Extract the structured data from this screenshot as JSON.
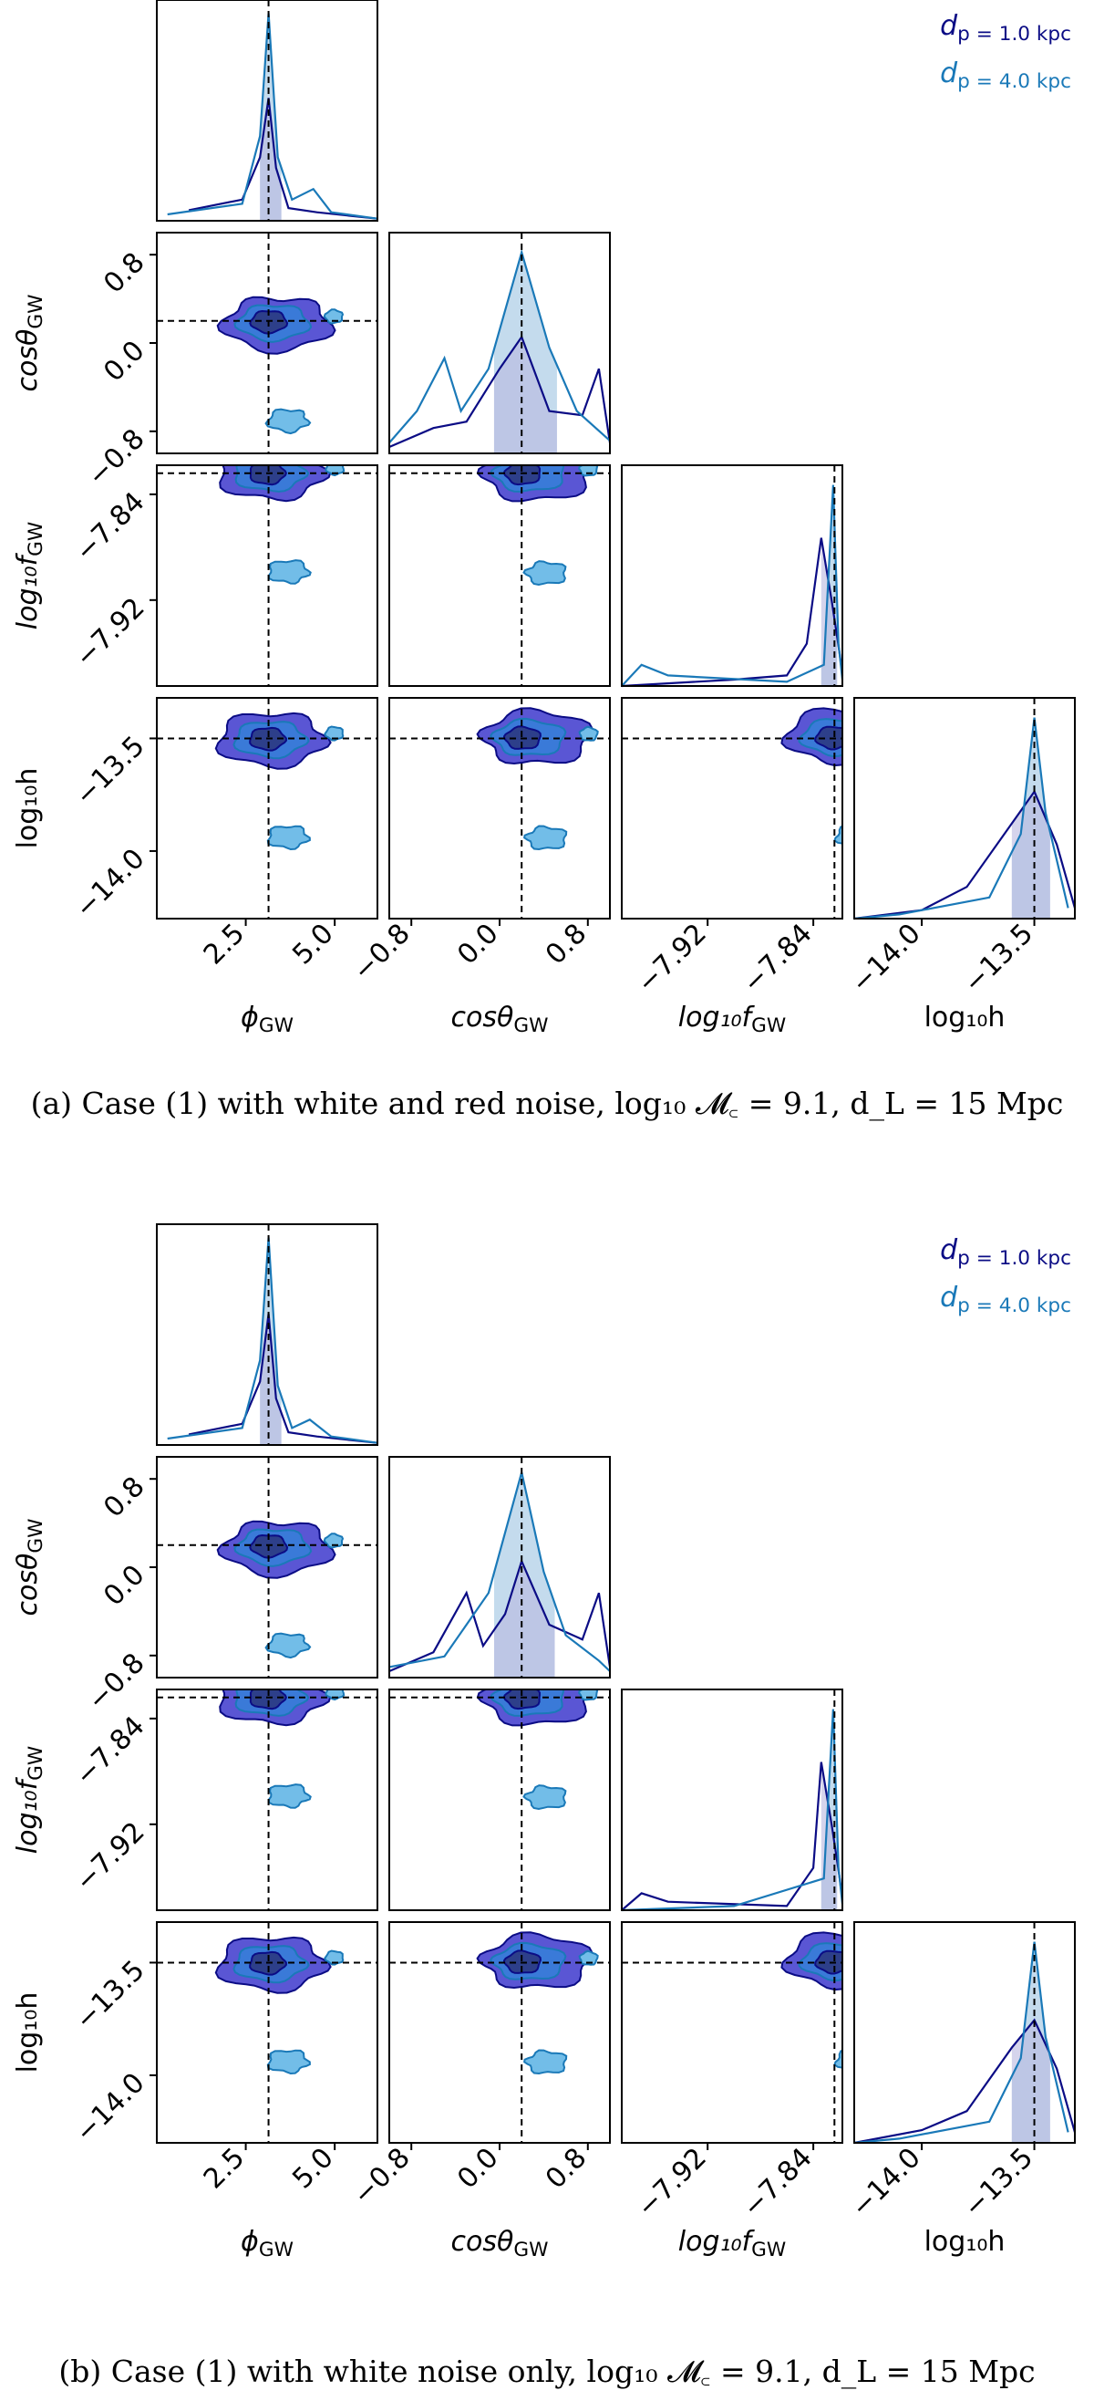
{
  "colors": {
    "near": "#0b0c85",
    "far": "#1a79b8",
    "fill_dark": "#5a56d4",
    "fill_mid": "#3a7ad8",
    "fill_light": "#72bde8",
    "band_near": "#b9b8e0",
    "band_far": "#c4dbed",
    "truth": "#000000"
  },
  "chart_data": [
    {
      "type": "corner",
      "id": "a",
      "caption": "(a)  Case (1) with white and red noise, log₁₀ 𝓜꜀ = 9.1, d_L = 15 Mpc",
      "legend": [
        {
          "label": "d_p = 1.0 kpc",
          "series": "near"
        },
        {
          "label": "d_p = 4.0 kpc",
          "series": "far"
        }
      ],
      "params": [
        {
          "name": "phi",
          "label": "ϕ_GW",
          "range": [
            0,
            6.2
          ],
          "truth": 3.14,
          "ticks": [
            2.5,
            5.0
          ],
          "tick_labels": [
            "2.5",
            "5.0"
          ]
        },
        {
          "name": "cos",
          "label": "cosθ_GW",
          "range": [
            -1.0,
            1.0
          ],
          "truth": 0.2,
          "ticks": [
            -0.8,
            0.0,
            0.8
          ],
          "tick_labels": [
            "−0.8",
            "0.0",
            "0.8"
          ]
        },
        {
          "name": "f",
          "label": "log₁₀f_GW",
          "range": [
            -7.985,
            -7.818
          ],
          "truth": -7.824,
          "ticks": [
            -7.92,
            -7.84
          ],
          "tick_labels": [
            "−7.92",
            "−7.84"
          ]
        },
        {
          "name": "h",
          "label": "log₁₀h",
          "range": [
            -14.3,
            -13.32
          ],
          "truth": -13.5,
          "ticks": [
            -14.0,
            -13.5
          ],
          "tick_labels": [
            "−14.0",
            "−13.5"
          ]
        }
      ],
      "marginals": [
        {
          "param": "phi",
          "band": [
            2.9,
            3.5
          ],
          "near": [
            [
              0.9,
              0.05
            ],
            [
              2.4,
              0.1
            ],
            [
              2.9,
              0.3
            ],
            [
              3.14,
              0.58
            ],
            [
              3.35,
              0.25
            ],
            [
              3.7,
              0.06
            ],
            [
              4.5,
              0.04
            ],
            [
              6.2,
              0.01
            ]
          ],
          "far": [
            [
              0.3,
              0.03
            ],
            [
              2.4,
              0.08
            ],
            [
              2.9,
              0.4
            ],
            [
              3.14,
              0.98
            ],
            [
              3.4,
              0.3
            ],
            [
              3.8,
              0.1
            ],
            [
              4.4,
              0.15
            ],
            [
              4.9,
              0.04
            ],
            [
              6.2,
              0.01
            ]
          ]
        },
        {
          "param": "cos",
          "band": [
            -0.05,
            0.52
          ],
          "near": [
            [
              -1.0,
              0.03
            ],
            [
              -0.6,
              0.12
            ],
            [
              -0.3,
              0.15
            ],
            [
              0.0,
              0.4
            ],
            [
              0.2,
              0.55
            ],
            [
              0.45,
              0.2
            ],
            [
              0.75,
              0.18
            ],
            [
              0.9,
              0.4
            ],
            [
              1.0,
              0.05
            ]
          ],
          "far": [
            [
              -1.0,
              0.05
            ],
            [
              -0.75,
              0.2
            ],
            [
              -0.5,
              0.45
            ],
            [
              -0.35,
              0.2
            ],
            [
              -0.1,
              0.4
            ],
            [
              0.2,
              0.95
            ],
            [
              0.45,
              0.5
            ],
            [
              0.7,
              0.2
            ],
            [
              1.0,
              0.06
            ]
          ]
        },
        {
          "param": "f",
          "band": [
            -7.834,
            -7.822
          ],
          "near": [
            [
              -7.985,
              0.0
            ],
            [
              -7.9,
              0.03
            ],
            [
              -7.86,
              0.05
            ],
            [
              -7.845,
              0.2
            ],
            [
              -7.834,
              0.7
            ],
            [
              -7.826,
              0.4
            ],
            [
              -7.82,
              0.15
            ],
            [
              -7.818,
              0.05
            ]
          ],
          "far": [
            [
              -7.985,
              0.0
            ],
            [
              -7.97,
              0.1
            ],
            [
              -7.95,
              0.05
            ],
            [
              -7.86,
              0.02
            ],
            [
              -7.832,
              0.1
            ],
            [
              -7.825,
              0.95
            ],
            [
              -7.821,
              0.2
            ],
            [
              -7.818,
              0.03
            ]
          ]
        },
        {
          "param": "h",
          "band": [
            -13.6,
            -13.43
          ],
          "near": [
            [
              -14.3,
              0.0
            ],
            [
              -14.0,
              0.04
            ],
            [
              -13.8,
              0.15
            ],
            [
              -13.6,
              0.45
            ],
            [
              -13.5,
              0.6
            ],
            [
              -13.4,
              0.35
            ],
            [
              -13.32,
              0.05
            ]
          ],
          "far": [
            [
              -14.3,
              0.0
            ],
            [
              -14.1,
              0.02
            ],
            [
              -13.7,
              0.1
            ],
            [
              -13.56,
              0.4
            ],
            [
              -13.5,
              0.95
            ],
            [
              -13.45,
              0.5
            ],
            [
              -13.35,
              0.05
            ]
          ]
        }
      ]
    },
    {
      "type": "corner",
      "id": "b",
      "caption": "(b)  Case (1) with white noise only, log₁₀ 𝓜꜀ = 9.1, d_L = 15 Mpc",
      "legend": [
        {
          "label": "d_p = 1.0 kpc",
          "series": "near"
        },
        {
          "label": "d_p = 4.0 kpc",
          "series": "far"
        }
      ],
      "params": [
        {
          "name": "phi",
          "label": "ϕ_GW",
          "range": [
            0,
            6.2
          ],
          "truth": 3.14,
          "ticks": [
            2.5,
            5.0
          ],
          "tick_labels": [
            "2.5",
            "5.0"
          ]
        },
        {
          "name": "cos",
          "label": "cosθ_GW",
          "range": [
            -1.0,
            1.0
          ],
          "truth": 0.2,
          "ticks": [
            -0.8,
            0.0,
            0.8
          ],
          "tick_labels": [
            "−0.8",
            "0.0",
            "0.8"
          ]
        },
        {
          "name": "f",
          "label": "log₁₀f_GW",
          "range": [
            -7.985,
            -7.818
          ],
          "truth": -7.824,
          "ticks": [
            -7.92,
            -7.84
          ],
          "tick_labels": [
            "−7.92",
            "−7.84"
          ]
        },
        {
          "name": "h",
          "label": "log₁₀h",
          "range": [
            -14.3,
            -13.32
          ],
          "truth": -13.5,
          "ticks": [
            -14.0,
            -13.5
          ],
          "tick_labels": [
            "−14.0",
            "−13.5"
          ]
        }
      ],
      "marginals": [
        {
          "param": "phi",
          "band": [
            2.9,
            3.5
          ],
          "near": [
            [
              0.9,
              0.05
            ],
            [
              2.4,
              0.1
            ],
            [
              2.9,
              0.3
            ],
            [
              3.14,
              0.62
            ],
            [
              3.35,
              0.22
            ],
            [
              3.7,
              0.06
            ],
            [
              4.5,
              0.04
            ],
            [
              6.2,
              0.01
            ]
          ],
          "far": [
            [
              0.3,
              0.03
            ],
            [
              2.4,
              0.08
            ],
            [
              2.9,
              0.4
            ],
            [
              3.14,
              0.98
            ],
            [
              3.4,
              0.28
            ],
            [
              3.8,
              0.08
            ],
            [
              4.3,
              0.12
            ],
            [
              4.9,
              0.04
            ],
            [
              6.2,
              0.01
            ]
          ]
        },
        {
          "param": "cos",
          "band": [
            -0.05,
            0.5
          ],
          "near": [
            [
              -1.0,
              0.03
            ],
            [
              -0.6,
              0.12
            ],
            [
              -0.3,
              0.4
            ],
            [
              -0.15,
              0.15
            ],
            [
              0.05,
              0.3
            ],
            [
              0.2,
              0.55
            ],
            [
              0.45,
              0.25
            ],
            [
              0.75,
              0.18
            ],
            [
              0.9,
              0.4
            ],
            [
              1.0,
              0.05
            ]
          ],
          "far": [
            [
              -1.0,
              0.05
            ],
            [
              -0.5,
              0.1
            ],
            [
              -0.1,
              0.4
            ],
            [
              0.2,
              0.97
            ],
            [
              0.4,
              0.5
            ],
            [
              0.6,
              0.2
            ],
            [
              0.9,
              0.08
            ],
            [
              1.0,
              0.03
            ]
          ]
        },
        {
          "param": "f",
          "band": [
            -7.834,
            -7.822
          ],
          "near": [
            [
              -7.985,
              0.0
            ],
            [
              -7.97,
              0.08
            ],
            [
              -7.95,
              0.04
            ],
            [
              -7.86,
              0.02
            ],
            [
              -7.84,
              0.2
            ],
            [
              -7.834,
              0.7
            ],
            [
              -7.826,
              0.4
            ],
            [
              -7.82,
              0.15
            ],
            [
              -7.818,
              0.05
            ]
          ],
          "far": [
            [
              -7.985,
              0.0
            ],
            [
              -7.9,
              0.02
            ],
            [
              -7.832,
              0.15
            ],
            [
              -7.825,
              0.95
            ],
            [
              -7.821,
              0.2
            ],
            [
              -7.818,
              0.03
            ]
          ]
        },
        {
          "param": "h",
          "band": [
            -13.6,
            -13.43
          ],
          "near": [
            [
              -14.3,
              0.0
            ],
            [
              -14.0,
              0.06
            ],
            [
              -13.8,
              0.15
            ],
            [
              -13.6,
              0.45
            ],
            [
              -13.5,
              0.58
            ],
            [
              -13.4,
              0.35
            ],
            [
              -13.32,
              0.05
            ]
          ],
          "far": [
            [
              -14.3,
              0.0
            ],
            [
              -14.1,
              0.02
            ],
            [
              -13.7,
              0.1
            ],
            [
              -13.56,
              0.4
            ],
            [
              -13.5,
              0.95
            ],
            [
              -13.45,
              0.5
            ],
            [
              -13.35,
              0.05
            ]
          ]
        }
      ]
    }
  ]
}
